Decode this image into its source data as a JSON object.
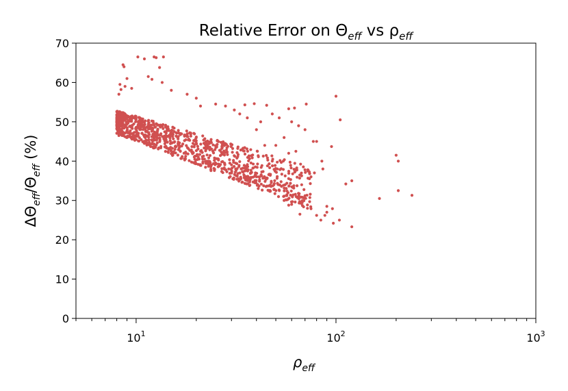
{
  "chart_data": {
    "type": "scatter",
    "title_text": "Relative  Error on Θ",
    "title_sub1": "eff",
    "title_mid": " vs ρ",
    "title_sub2": "eff",
    "xlabel_main": "ρ",
    "xlabel_sub": "eff",
    "ylabel_part1": "ΔΘ",
    "ylabel_sub1": "eff",
    "ylabel_part2": "/Θ",
    "ylabel_sub2": "eff",
    "ylabel_part3": "  (%)",
    "xscale": "log",
    "xlim": [
      5,
      1000
    ],
    "ylim": [
      0,
      70
    ],
    "yticks": [
      "0",
      "10",
      "20",
      "30",
      "40",
      "50",
      "60",
      "70"
    ],
    "xticks": [
      {
        "base": "10",
        "exp": "1",
        "value": 10
      },
      {
        "base": "10",
        "exp": "2",
        "value": 100
      },
      {
        "base": "10",
        "exp": "3",
        "value": 1000
      }
    ],
    "grid": false,
    "marker_color": "#d05050",
    "band": {
      "x_min": 8,
      "x_max": 75,
      "center_start": 51,
      "center_slope_per_decade": -20,
      "spread_low": 4,
      "spread_high": 5,
      "count": 1050
    },
    "points": [
      [
        8.6,
        64.5
      ],
      [
        8.7,
        64.0
      ],
      [
        10.2,
        66.5
      ],
      [
        11.0,
        66.0
      ],
      [
        12.3,
        66.5
      ],
      [
        12.6,
        66.3
      ],
      [
        13.7,
        66.5
      ],
      [
        13.1,
        63.8
      ],
      [
        9.0,
        61.0
      ],
      [
        11.5,
        61.5
      ],
      [
        12.0,
        60.8
      ],
      [
        13.5,
        60.0
      ],
      [
        15.0,
        58.0
      ],
      [
        18.0,
        57.0
      ],
      [
        20.0,
        56.0
      ],
      [
        21.0,
        54.0
      ],
      [
        25.0,
        54.5
      ],
      [
        28.0,
        54.0
      ],
      [
        35.0,
        54.3
      ],
      [
        39.0,
        54.6
      ],
      [
        45.0,
        54.2
      ],
      [
        58.0,
        53.3
      ],
      [
        62.0,
        53.5
      ],
      [
        71.0,
        54.5
      ],
      [
        100.0,
        56.5
      ],
      [
        105.0,
        50.5
      ],
      [
        48.0,
        52.0
      ],
      [
        52.0,
        51.0
      ],
      [
        60.0,
        50.0
      ],
      [
        65.0,
        49.0
      ],
      [
        70.0,
        48.0
      ],
      [
        77.0,
        45.0
      ],
      [
        80.0,
        45.0
      ],
      [
        55.0,
        46.0
      ],
      [
        40.0,
        48.0
      ],
      [
        42.0,
        50.0
      ],
      [
        36.0,
        51.0
      ],
      [
        33.0,
        52.0
      ],
      [
        31.0,
        53.0
      ],
      [
        44.0,
        44.0
      ],
      [
        50.0,
        44.0
      ],
      [
        58.0,
        42.0
      ],
      [
        63.0,
        42.5
      ],
      [
        85.0,
        40.0
      ],
      [
        86.0,
        38.0
      ],
      [
        95.0,
        43.7
      ],
      [
        48.0,
        40.0
      ],
      [
        75.0,
        36.0
      ],
      [
        78.0,
        37.0
      ],
      [
        112.0,
        34.2
      ],
      [
        120.0,
        35.0
      ],
      [
        200.0,
        41.5
      ],
      [
        205.0,
        40.0
      ],
      [
        240.0,
        31.3
      ],
      [
        205.0,
        32.5
      ],
      [
        165.0,
        30.5
      ],
      [
        104.0,
        25.0
      ],
      [
        120.0,
        23.3
      ],
      [
        88.0,
        26.2
      ],
      [
        90.0,
        27.0
      ],
      [
        96.0,
        27.9
      ],
      [
        97.0,
        24.2
      ],
      [
        80.0,
        26.2
      ],
      [
        84.0,
        25.0
      ],
      [
        75.0,
        27.9
      ],
      [
        72.0,
        28.0
      ],
      [
        68.0,
        30.8
      ],
      [
        65.0,
        31.0
      ],
      [
        60.0,
        29.0
      ],
      [
        58.0,
        28.8
      ],
      [
        70.0,
        31.2
      ],
      [
        55.0,
        30.0
      ],
      [
        66.0,
        26.5
      ],
      [
        90.0,
        28.5
      ],
      [
        8.2,
        57.0
      ],
      [
        8.3,
        59.5
      ],
      [
        8.4,
        58.2
      ],
      [
        8.8,
        59.0
      ],
      [
        9.5,
        58.5
      ],
      [
        8.2,
        46.5
      ],
      [
        9.0,
        46.0
      ],
      [
        10.0,
        45.5
      ],
      [
        11.0,
        44.5
      ],
      [
        12.5,
        43.5
      ]
    ]
  }
}
